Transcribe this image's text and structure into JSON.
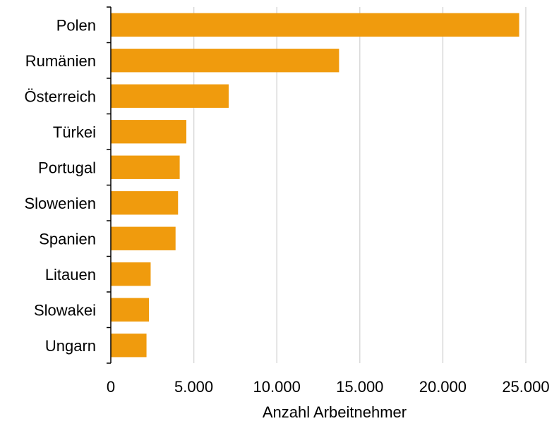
{
  "chart_data": {
    "type": "bar",
    "orientation": "horizontal",
    "categories": [
      "Polen",
      "Rumänien",
      "Österreich",
      "Türkei",
      "Portugal",
      "Slowenien",
      "Spanien",
      "Litauen",
      "Slowakei",
      "Ungarn"
    ],
    "values": [
      24600,
      13750,
      7100,
      4550,
      4150,
      4050,
      3900,
      2400,
      2300,
      2150
    ],
    "xlabel": "Anzahl Arbeitnehmer",
    "ylabel": "",
    "xlim": [
      0,
      27000
    ],
    "xticks": [
      0,
      5000,
      10000,
      15000,
      20000,
      25000
    ],
    "xtick_labels": [
      "0",
      "5.000",
      "10.000",
      "15.000",
      "20.000",
      "25.000"
    ],
    "grid": "vertical",
    "legend": "none",
    "bar_color": "#f09b0d"
  }
}
